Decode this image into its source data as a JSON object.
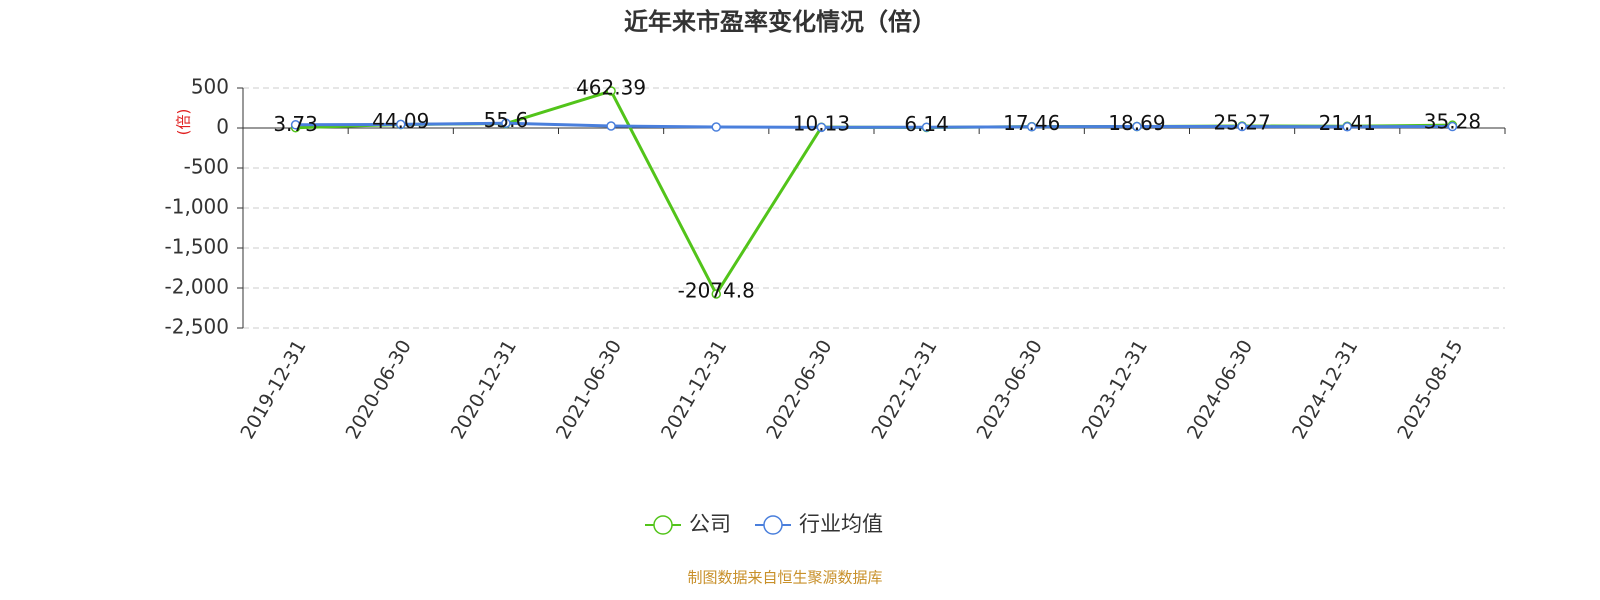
{
  "chart_data": {
    "type": "line",
    "title": "近年来市盈率变化情况（倍）",
    "y_label": "(倍)",
    "source": "制图数据来自恒生聚源数据库",
    "categories": [
      "2019-12-31",
      "2020-06-30",
      "2020-12-31",
      "2021-06-30",
      "2021-12-31",
      "2022-06-30",
      "2022-12-31",
      "2023-06-30",
      "2023-12-31",
      "2024-06-30",
      "2024-12-31",
      "2025-08-15"
    ],
    "series": [
      {
        "name": "公司",
        "color": "#52c41a",
        "values": [
          3.73,
          44.09,
          55.6,
          462.39,
          -2074.8,
          10.13,
          6.14,
          17.46,
          18.69,
          25.27,
          21.41,
          35.28
        ],
        "show_labels": true
      },
      {
        "name": "行业均值",
        "color": "#4a7fdc",
        "values": [
          40,
          45,
          60,
          25,
          12,
          8,
          10,
          15,
          18,
          18,
          15,
          18
        ],
        "show_labels": false
      }
    ],
    "ylim": [
      -2500,
      500
    ],
    "yticks": [
      {
        "value": 500,
        "label": "500"
      },
      0,
      {
        "value": -500,
        "label": "-500"
      },
      {
        "value": -1000,
        "label": "-1,000"
      },
      {
        "value": -1500,
        "label": "-1,500"
      },
      {
        "value": -2000,
        "label": "-2,000"
      },
      {
        "value": -2500,
        "label": "-2,500"
      }
    ],
    "grid": true
  }
}
